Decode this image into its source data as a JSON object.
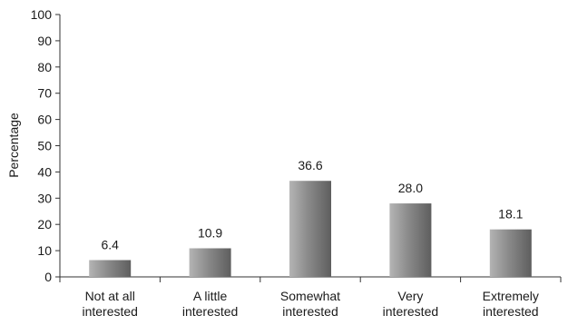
{
  "chart_data": {
    "type": "bar",
    "categories": [
      [
        "Not at all",
        "interested"
      ],
      [
        "A little",
        "interested"
      ],
      [
        "Somewhat",
        "interested"
      ],
      [
        "Very",
        "interested"
      ],
      [
        "Extremely",
        "interested"
      ]
    ],
    "values": [
      6.4,
      10.9,
      36.6,
      28.0,
      18.1
    ],
    "data_labels": [
      "6.4",
      "10.9",
      "36.6",
      "28.0",
      "18.1"
    ],
    "title": "",
    "xlabel": "",
    "ylabel": "Percentage",
    "ylim": [
      0,
      100
    ],
    "yticks": [
      0,
      10,
      20,
      30,
      40,
      50,
      60,
      70,
      80,
      90,
      100
    ],
    "grid": false,
    "legend": "none",
    "colors": {
      "bar_light": "#b4b4b4",
      "bar_dark": "#5e5e5e",
      "axis": "#333333"
    }
  }
}
